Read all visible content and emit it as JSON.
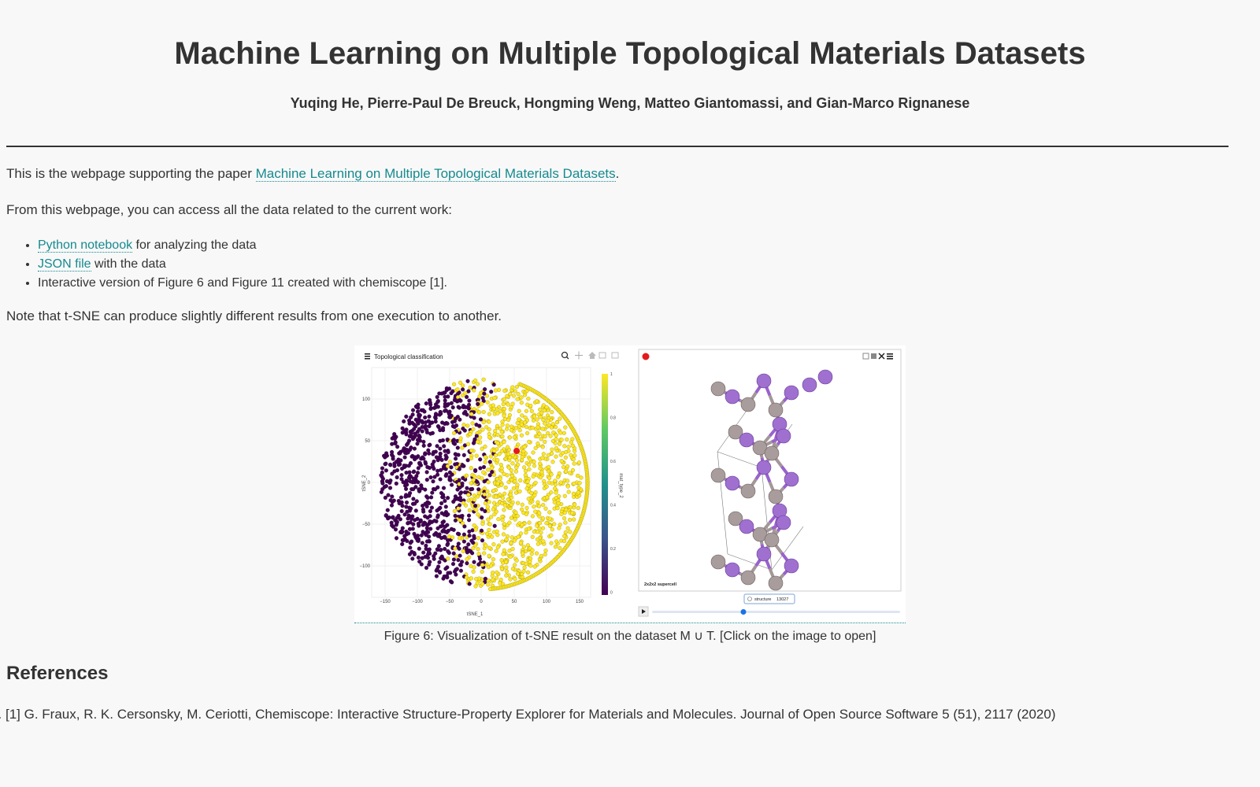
{
  "page": {
    "title": "Machine Learning on Multiple Topological Materials Datasets",
    "authors": "Yuqing He, Pierre-Paul De Breuck, Hongming Weng, Matteo Giantomassi, and Gian-Marco Rignanese"
  },
  "intro": {
    "prefix": "This is the webpage supporting the paper ",
    "paper_link": "Machine Learning on Multiple Topological Materials Datasets",
    "suffix": "."
  },
  "access_text": "From this webpage, you can access all the data related to the current work:",
  "list": {
    "item1_link": "Python notebook",
    "item1_rest": " for analyzing the data",
    "item2_link": "JSON file",
    "item2_rest": " with the data",
    "item3": "Interactive version of Figure 6 and Figure 11 created with chemiscope [1]."
  },
  "note": "Note that t-SNE can produce slightly different results from one execution to another.",
  "figure": {
    "map_title": "Topological classification",
    "colorbar_label": "mat_type_2",
    "colorbar_ticks": [
      "1",
      "0.8",
      "0.6",
      "0.4",
      "0.2",
      "0"
    ],
    "x_label": "tSNE_1",
    "y_label": "tSNE_2",
    "x_ticks": [
      "−150",
      "−100",
      "−50",
      "0",
      "50",
      "100",
      "150"
    ],
    "y_ticks": [
      "100",
      "50",
      "0",
      "−50",
      "−100"
    ],
    "supercell_label": "2x2x2 supercell",
    "structure_label": "structure",
    "structure_value": "13027",
    "colors": {
      "low": "#440154",
      "high": "#fde725",
      "selected": "#e41a1c",
      "atom_a": "#a070d0",
      "atom_b": "#a89c9c"
    },
    "caption": "Figure 6: Visualization of t-SNE result on the dataset M ∪ T. [Click on the image to open]"
  },
  "references": {
    "heading": "References",
    "items": [
      "[1] G. Fraux, R. K. Cersonsky, M. Ceriotti, Chemiscope: Interactive Structure-Property Explorer for Materials and Molecules. Journal of Open Source Software 5 (51), 2117 (2020)"
    ]
  }
}
